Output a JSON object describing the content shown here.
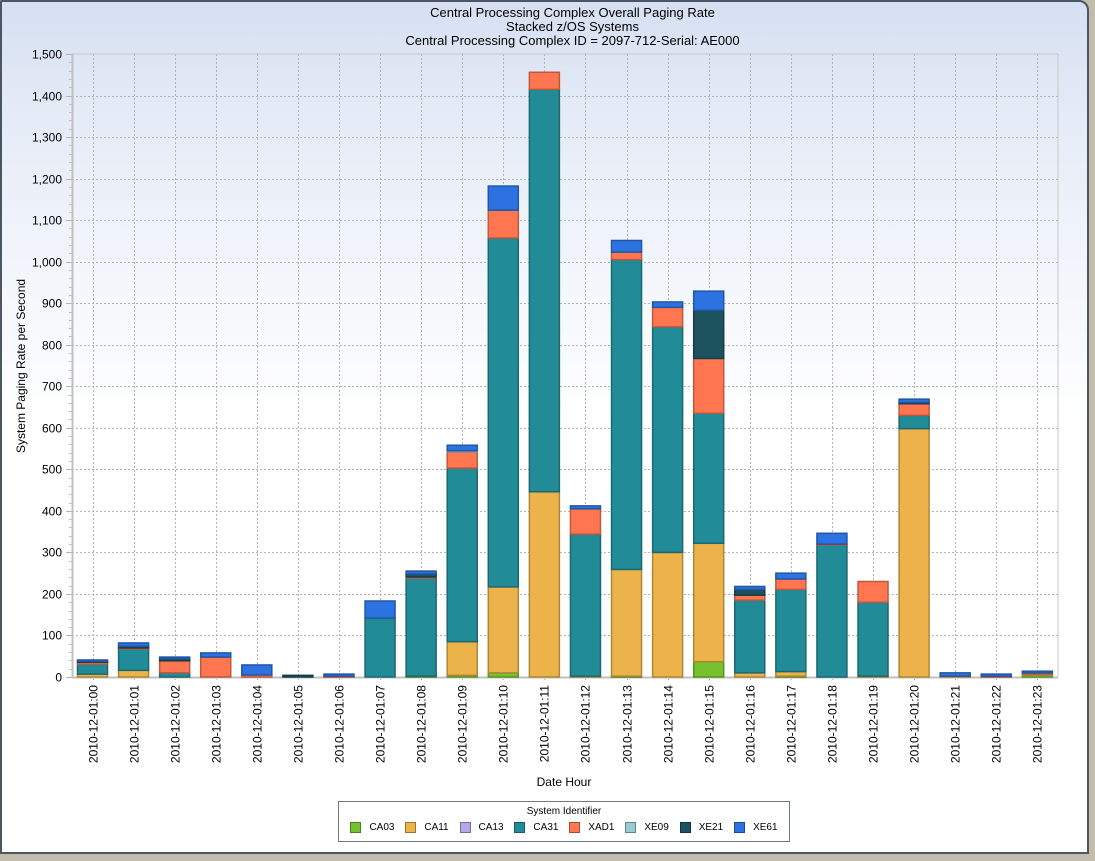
{
  "chart_data": {
    "type": "bar",
    "stacked": true,
    "title": "Central Processing Complex Overall Paging Rate",
    "subtitle": "Stacked z/OS Systems",
    "subtitle2": "Central Processing Complex ID = 2097-712-Serial: AE000",
    "xlabel": "Date Hour",
    "ylabel": "System Paging Rate per Second",
    "ylim": [
      0,
      1500
    ],
    "yticks": [
      "0",
      "100",
      "200",
      "300",
      "400",
      "500",
      "600",
      "700",
      "800",
      "900",
      "1,000",
      "1,100",
      "1,200",
      "1,300",
      "1,400",
      "1,500"
    ],
    "ytick_values": [
      0,
      100,
      200,
      300,
      400,
      500,
      600,
      700,
      800,
      900,
      1000,
      1100,
      1200,
      1300,
      1400,
      1500
    ],
    "grid": true,
    "legend_title": "System Identifier",
    "legend_position": "bottom",
    "categories": [
      "2010-12-01:00",
      "2010-12-01:01",
      "2010-12-01:02",
      "2010-12-01:03",
      "2010-12-01:04",
      "2010-12-01:05",
      "2010-12-01:06",
      "2010-12-01:07",
      "2010-12-01:08",
      "2010-12-01:09",
      "2010-12-01:10",
      "2010-12-01:11",
      "2010-12-01:12",
      "2010-12-01:13",
      "2010-12-01:14",
      "2010-12-01:15",
      "2010-12-01:16",
      "2010-12-01:17",
      "2010-12-01:18",
      "2010-12-01:19",
      "2010-12-01:20",
      "2010-12-01:21",
      "2010-12-01:22",
      "2010-12-01:23"
    ],
    "series": [
      {
        "name": "CA03",
        "color": "#76c22e",
        "values": [
          0,
          0,
          0,
          0,
          0,
          0,
          0,
          0,
          2,
          4,
          10,
          0,
          0,
          2,
          0,
          37,
          0,
          2,
          0,
          0,
          0,
          0,
          0,
          5
        ]
      },
      {
        "name": "CA11",
        "color": "#ebb34a",
        "values": [
          7,
          16,
          0,
          0,
          0,
          0,
          0,
          0,
          0,
          81,
          207,
          446,
          2,
          257,
          300,
          285,
          10,
          11,
          0,
          2,
          598,
          2,
          0,
          2
        ]
      },
      {
        "name": "CA13",
        "color": "#b9a6ea",
        "values": [
          0,
          0,
          0,
          0,
          0,
          0,
          0,
          0,
          0,
          0,
          0,
          0,
          0,
          0,
          0,
          0,
          0,
          0,
          0,
          0,
          0,
          0,
          0,
          0
        ]
      },
      {
        "name": "CA31",
        "color": "#228b98",
        "values": [
          24,
          52,
          10,
          0,
          0,
          0,
          0,
          142,
          236,
          418,
          840,
          969,
          342,
          746,
          543,
          313,
          175,
          198,
          318,
          178,
          32,
          0,
          0,
          0
        ]
      },
      {
        "name": "XAD1",
        "color": "#ff7650",
        "values": [
          5,
          2,
          29,
          48,
          5,
          0,
          2,
          0,
          3,
          39,
          67,
          41,
          61,
          18,
          47,
          132,
          12,
          25,
          2,
          50,
          28,
          0,
          2,
          3
        ]
      },
      {
        "name": "XE09",
        "color": "#98cbd4",
        "values": [
          0,
          0,
          0,
          0,
          0,
          0,
          0,
          0,
          0,
          3,
          0,
          0,
          0,
          0,
          0,
          0,
          0,
          0,
          0,
          0,
          0,
          0,
          0,
          0
        ]
      },
      {
        "name": "XE21",
        "color": "#1d535f",
        "values": [
          2,
          4,
          6,
          0,
          0,
          4,
          0,
          0,
          7,
          0,
          0,
          0,
          0,
          0,
          0,
          116,
          14,
          0,
          0,
          0,
          3,
          0,
          0,
          0
        ]
      },
      {
        "name": "XE61",
        "color": "#2c72e0",
        "values": [
          3,
          8,
          3,
          10,
          24,
          0,
          5,
          41,
          7,
          13,
          58,
          0,
          7,
          28,
          13,
          46,
          7,
          14,
          26,
          0,
          8,
          8,
          5,
          4
        ]
      }
    ]
  }
}
